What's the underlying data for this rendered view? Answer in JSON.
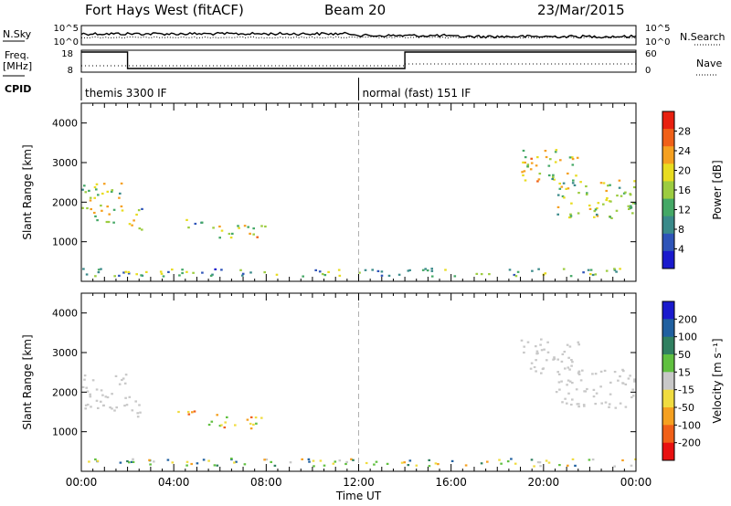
{
  "header": {
    "station": "Fort Hays West (fitACF)",
    "beam": "Beam 20",
    "date": "23/Mar/2015"
  },
  "panels": {
    "noise": {
      "left_label": "N.Sky",
      "right_label": "N.Search",
      "left_ticks": [
        "10^5",
        "10^0"
      ],
      "right_ticks": [
        "10^5",
        "10^0"
      ]
    },
    "freq": {
      "left_label_1": "Freq.",
      "left_label_2": "[MHz]",
      "right_label": "Nave",
      "left_ticks": [
        "18",
        "8"
      ],
      "right_ticks": [
        "60",
        "0"
      ]
    },
    "cpid": {
      "label": "CPID",
      "modes": [
        {
          "name": "themis 3300 IF",
          "start_hour": 0
        },
        {
          "name": "normal (fast) 151 IF",
          "start_hour": 12
        }
      ]
    }
  },
  "chart_data": [
    {
      "type": "heatmap",
      "name": "power",
      "ylabel": "Slant Range [km]",
      "xlabel": "",
      "x_range_hours": [
        0,
        24
      ],
      "ylim": [
        0,
        4500
      ],
      "y_ticks": [
        1000,
        2000,
        3000,
        4000
      ],
      "colorbar": {
        "label": "Power [dB]",
        "ticks": [
          4,
          8,
          12,
          16,
          20,
          24,
          28
        ],
        "range": [
          0,
          32
        ],
        "colors": [
          "#1a1acd",
          "#2e54b8",
          "#3a8a8a",
          "#44a866",
          "#9ccc40",
          "#e8dc20",
          "#f5a020",
          "#f06018",
          "#e82010"
        ]
      },
      "echo_regions": [
        {
          "t0": 0.0,
          "t1": 1.9,
          "r0": 1500,
          "r1": 2500,
          "level": 0.55
        },
        {
          "t0": 1.9,
          "t1": 2.6,
          "r0": 1250,
          "r1": 1900,
          "level": 0.45
        },
        {
          "t0": 4.0,
          "t1": 5.2,
          "r0": 1350,
          "r1": 1600,
          "level": 0.35
        },
        {
          "t0": 5.3,
          "t1": 8.0,
          "r0": 1100,
          "r1": 1450,
          "level": 0.6
        },
        {
          "t0": 19.0,
          "t1": 21.5,
          "r0": 2500,
          "r1": 3400,
          "level": 0.6
        },
        {
          "t0": 20.5,
          "t1": 24.0,
          "r0": 1600,
          "r1": 2600,
          "level": 0.5
        },
        {
          "t0": 0.0,
          "t1": 24.0,
          "r0": 150,
          "r1": 350,
          "level": 0.35
        }
      ]
    },
    {
      "type": "heatmap",
      "name": "velocity",
      "ylabel": "Slant Range [km]",
      "xlabel": "Time UT",
      "x_range_hours": [
        0,
        24
      ],
      "x_ticks": [
        "00:00",
        "04:00",
        "08:00",
        "12:00",
        "16:00",
        "20:00",
        "00:00"
      ],
      "ylim": [
        0,
        4500
      ],
      "y_ticks": [
        1000,
        2000,
        3000,
        4000
      ],
      "colorbar": {
        "label": "Velocity [m s⁻¹]",
        "ticks": [
          "200",
          "100",
          "50",
          "15",
          "-15",
          "-50",
          "-100",
          "-200"
        ],
        "colors": [
          "#1a1acd",
          "#2060a0",
          "#308060",
          "#60c040",
          "#c8c8c8",
          "#f0dc40",
          "#f5a020",
          "#f06018",
          "#e81010"
        ]
      },
      "echo_regions": [
        {
          "t0": 0.0,
          "t1": 1.9,
          "r0": 1500,
          "r1": 2500,
          "vel": "ground"
        },
        {
          "t0": 1.9,
          "t1": 2.6,
          "r0": 1250,
          "r1": 1900,
          "vel": "ground"
        },
        {
          "t0": 4.0,
          "t1": 5.2,
          "r0": 1350,
          "r1": 1600,
          "vel": "negative"
        },
        {
          "t0": 5.3,
          "t1": 8.0,
          "r0": 1100,
          "r1": 1450,
          "vel": "negative"
        },
        {
          "t0": 19.0,
          "t1": 21.5,
          "r0": 2500,
          "r1": 3400,
          "vel": "ground"
        },
        {
          "t0": 20.5,
          "t1": 24.0,
          "r0": 1600,
          "r1": 2600,
          "vel": "ground"
        },
        {
          "t0": 0.0,
          "t1": 24.0,
          "r0": 150,
          "r1": 350,
          "vel": "mixed"
        }
      ]
    }
  ]
}
